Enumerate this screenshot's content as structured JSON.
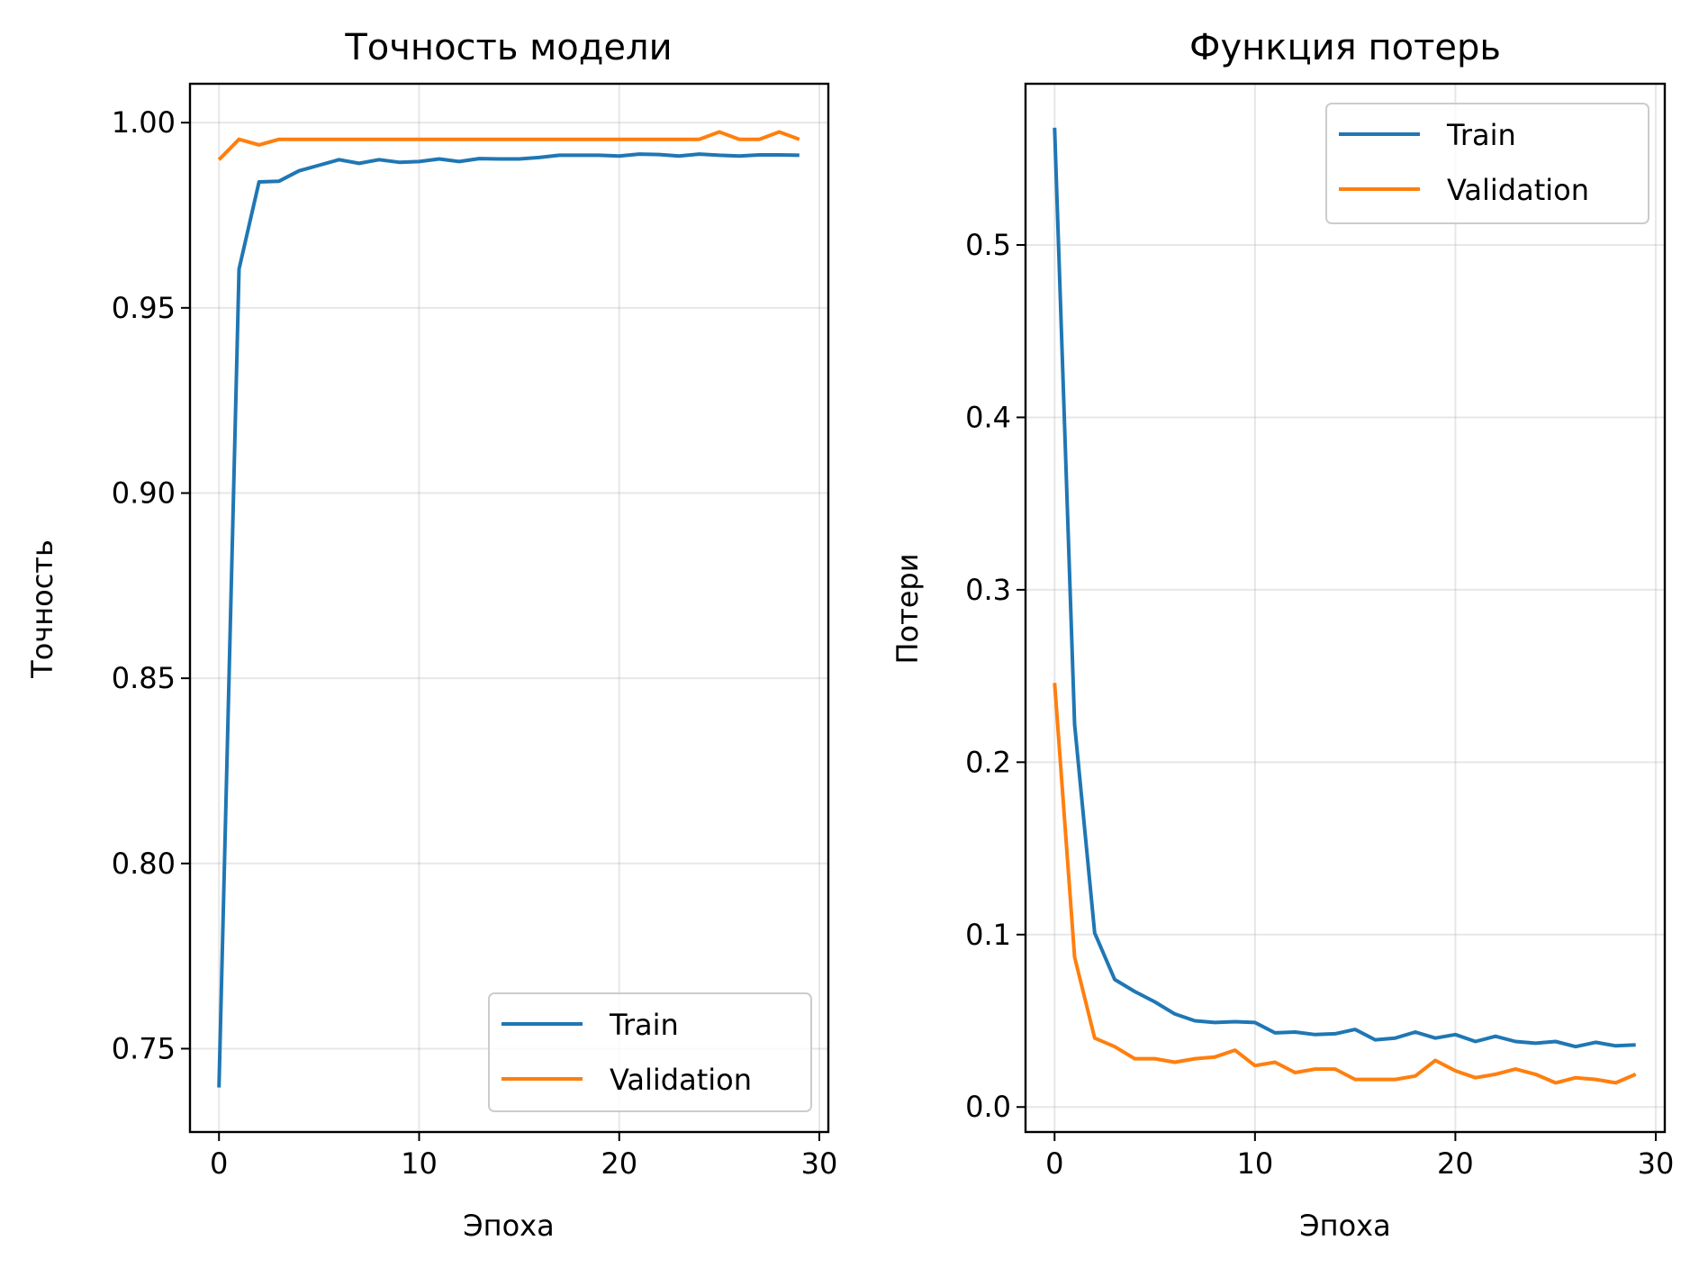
{
  "chart_data": [
    {
      "type": "line",
      "title": "Точность модели",
      "xlabel": "Эпоха",
      "ylabel": "Точность",
      "xlim": [
        -1.45,
        30.45
      ],
      "ylim": [
        0.7275,
        1.0105
      ],
      "xticks": [
        0,
        10,
        20,
        30
      ],
      "xtick_labels": [
        "0",
        "10",
        "20",
        "30"
      ],
      "yticks": [
        0.75,
        0.8,
        0.85,
        0.9,
        0.95,
        1.0
      ],
      "ytick_labels": [
        "0.75",
        "0.80",
        "0.85",
        "0.90",
        "0.95",
        "1.00"
      ],
      "grid": true,
      "legend_position": "lower-right",
      "x": [
        0,
        1,
        2,
        3,
        4,
        5,
        6,
        7,
        8,
        9,
        10,
        11,
        12,
        13,
        14,
        15,
        16,
        17,
        18,
        19,
        20,
        21,
        22,
        23,
        24,
        25,
        26,
        27,
        28,
        29
      ],
      "series": [
        {
          "name": "Train",
          "color": "#1f77b4",
          "values": [
            0.7395,
            0.9605,
            0.984,
            0.9842,
            0.987,
            0.9885,
            0.99,
            0.989,
            0.99,
            0.9893,
            0.9895,
            0.9902,
            0.9895,
            0.9903,
            0.9902,
            0.9902,
            0.9906,
            0.9912,
            0.9912,
            0.9912,
            0.991,
            0.9915,
            0.9914,
            0.991,
            0.9915,
            0.9912,
            0.991,
            0.9913,
            0.9913,
            0.9912
          ]
        },
        {
          "name": "Validation",
          "color": "#ff7f0e",
          "values": [
            0.99,
            0.9955,
            0.994,
            0.9955,
            0.9955,
            0.9955,
            0.9955,
            0.9955,
            0.9955,
            0.9955,
            0.9955,
            0.9955,
            0.9955,
            0.9955,
            0.9955,
            0.9955,
            0.9955,
            0.9955,
            0.9955,
            0.9955,
            0.9955,
            0.9955,
            0.9955,
            0.9955,
            0.9955,
            0.9975,
            0.9955,
            0.9955,
            0.9975,
            0.9955
          ]
        }
      ]
    },
    {
      "type": "line",
      "title": "Функция потерь",
      "xlabel": "Эпоха",
      "ylabel": "Потери",
      "xlim": [
        -1.45,
        30.45
      ],
      "ylim": [
        -0.0145,
        0.5935
      ],
      "xticks": [
        0,
        10,
        20,
        30
      ],
      "xtick_labels": [
        "0",
        "10",
        "20",
        "30"
      ],
      "yticks": [
        0.0,
        0.1,
        0.2,
        0.3,
        0.4,
        0.5
      ],
      "ytick_labels": [
        "0.0",
        "0.1",
        "0.2",
        "0.3",
        "0.4",
        "0.5"
      ],
      "grid": true,
      "legend_position": "upper-right",
      "x": [
        0,
        1,
        2,
        3,
        4,
        5,
        6,
        7,
        8,
        9,
        10,
        11,
        12,
        13,
        14,
        15,
        16,
        17,
        18,
        19,
        20,
        21,
        22,
        23,
        24,
        25,
        26,
        27,
        28,
        29
      ],
      "series": [
        {
          "name": "Train",
          "color": "#1f77b4",
          "values": [
            0.568,
            0.222,
            0.101,
            0.074,
            0.067,
            0.061,
            0.054,
            0.05,
            0.049,
            0.0495,
            0.049,
            0.043,
            0.0435,
            0.042,
            0.0425,
            0.045,
            0.039,
            0.04,
            0.0435,
            0.04,
            0.042,
            0.038,
            0.041,
            0.038,
            0.037,
            0.038,
            0.035,
            0.0375,
            0.0355,
            0.036
          ]
        },
        {
          "name": "Validation",
          "color": "#ff7f0e",
          "values": [
            0.246,
            0.087,
            0.04,
            0.035,
            0.028,
            0.028,
            0.026,
            0.028,
            0.029,
            0.033,
            0.024,
            0.026,
            0.02,
            0.022,
            0.022,
            0.016,
            0.016,
            0.016,
            0.018,
            0.027,
            0.021,
            0.017,
            0.019,
            0.022,
            0.019,
            0.014,
            0.017,
            0.016,
            0.014,
            0.019
          ]
        }
      ]
    }
  ]
}
